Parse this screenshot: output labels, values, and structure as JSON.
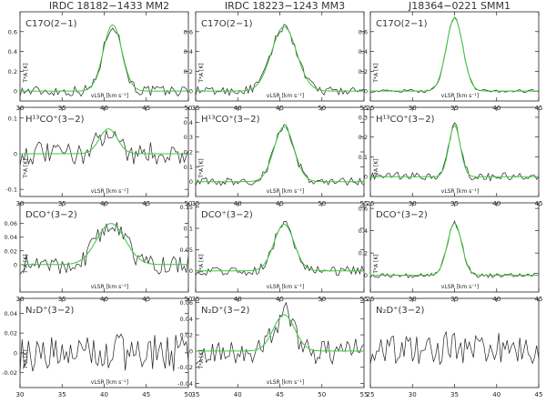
{
  "column_titles": [
    "IRDC 18182−1433 MM2",
    "IRDC 18223−1243 MM3",
    "J18364−0221 SMM1"
  ],
  "chart_data": [
    {
      "type": "line",
      "panel": "C17O(2-1)",
      "source": "IRDC 18182-1433 MM2",
      "line_label": "C17O(2−1)",
      "xlim": [
        30,
        50
      ],
      "ylim": [
        -0.1,
        0.8
      ],
      "xticks": [
        30,
        35,
        40,
        45,
        50
      ],
      "yticks": [
        0,
        0.2,
        0.4,
        0.6
      ],
      "ylabel": "T*A [K]",
      "xlabel": "vLSR [km s⁻¹]",
      "fit": {
        "amp": 0.67,
        "center": 41.0,
        "fwhm": 2.6
      },
      "noise": 0.05,
      "series": [
        {
          "values": []
        },
        {
          "values": []
        }
      ]
    },
    {
      "type": "line",
      "panel": "C17O(2-1)",
      "source": "IRDC 18223-1243 MM3",
      "line_label": "C17O(2−1)",
      "xlim": [
        35,
        55
      ],
      "ylim": [
        -0.1,
        0.8
      ],
      "xticks": [
        35,
        40,
        45,
        50,
        55
      ],
      "yticks": [
        0,
        0.2,
        0.4,
        0.6
      ],
      "ylabel": "T*A [K]",
      "xlabel": "vLSR [km s⁻¹]",
      "fit": {
        "amp": 0.65,
        "center": 45.5,
        "fwhm": 3.5
      },
      "noise": 0.04,
      "series": [
        {
          "values": []
        },
        {
          "values": []
        }
      ]
    },
    {
      "type": "line",
      "panel": "C17O(2-1)",
      "source": "J18364-0221 SMM1",
      "line_label": "C17O(2−1)",
      "xlim": [
        25,
        45
      ],
      "ylim": [
        -0.1,
        0.8
      ],
      "xticks": [
        25,
        30,
        35,
        40,
        45
      ],
      "yticks": [
        0,
        0.2,
        0.4,
        0.6
      ],
      "ylabel": "T*A [K]",
      "xlabel": "vLSR [km s⁻¹]",
      "fit": {
        "amp": 0.74,
        "center": 35.0,
        "fwhm": 2.3
      },
      "noise": 0.015,
      "series": [
        {
          "values": []
        },
        {
          "values": []
        }
      ]
    },
    {
      "type": "line",
      "panel": "H13CO+(3-2)",
      "source": "IRDC 18182-1433 MM2",
      "line_label": "H¹³CO⁺(3−2)",
      "xlim": [
        30,
        50
      ],
      "ylim": [
        -0.12,
        0.13
      ],
      "xticks": [
        30,
        35,
        40,
        45,
        50
      ],
      "yticks": [
        -0.1,
        0,
        0.1
      ],
      "ylabel": "T*A [K]",
      "xlabel": "vLSR [km s⁻¹]",
      "fit": {
        "amp": 0.07,
        "center": 40.5,
        "fwhm": 2.5
      },
      "noise": 0.03,
      "series": [
        {
          "values": []
        },
        {
          "values": []
        }
      ]
    },
    {
      "type": "line",
      "panel": "H13CO+(3-2)",
      "source": "IRDC 18223-1243 MM3",
      "line_label": "H¹³CO⁺(3−2)",
      "xlim": [
        35,
        55
      ],
      "ylim": [
        -0.1,
        0.5
      ],
      "xticks": [
        35,
        40,
        45,
        50,
        55
      ],
      "yticks": [
        0,
        0.1,
        0.2,
        0.3,
        0.4
      ],
      "ylabel": "T*A [K]",
      "xlabel": "vLSR [km s⁻¹]",
      "fit": {
        "amp": 0.37,
        "center": 45.5,
        "fwhm": 2.8
      },
      "noise": 0.025,
      "series": [
        {
          "values": []
        },
        {
          "values": []
        }
      ]
    },
    {
      "type": "line",
      "panel": "H13CO+(3-2)",
      "source": "J18364-0221 SMM1",
      "line_label": "H¹³CO⁺(3−2)",
      "xlim": [
        25,
        45
      ],
      "ylim": [
        -0.1,
        0.35
      ],
      "xticks": [
        25,
        30,
        35,
        40,
        45
      ],
      "yticks": [
        0,
        0.1,
        0.2,
        0.3
      ],
      "ylabel": "T*A [K]",
      "xlabel": "vLSR [km s⁻¹]",
      "fit": {
        "amp": 0.26,
        "center": 35.0,
        "fwhm": 1.6
      },
      "noise": 0.02,
      "series": [
        {
          "values": []
        },
        {
          "values": []
        }
      ]
    },
    {
      "type": "line",
      "panel": "DCO+(3-2)",
      "source": "IRDC 18182-1433 MM2",
      "line_label": "DCO⁺(3−2)",
      "xlim": [
        30,
        50
      ],
      "ylim": [
        -0.04,
        0.09
      ],
      "xticks": [
        30,
        35,
        40,
        45,
        50
      ],
      "yticks": [
        0,
        0.02,
        0.04,
        0.06
      ],
      "ylabel": "T*A [K]",
      "xlabel": "vLSR [km s⁻¹]",
      "fit": {
        "amp": 0.06,
        "center": 40.8,
        "fwhm": 4.0
      },
      "noise": 0.013,
      "series": [
        {
          "values": []
        },
        {
          "values": []
        }
      ]
    },
    {
      "type": "line",
      "panel": "DCO+(3-2)",
      "source": "IRDC 18223-1243 MM3",
      "line_label": "DCO⁺(3−2)",
      "xlim": [
        35,
        55
      ],
      "ylim": [
        -0.05,
        0.16
      ],
      "xticks": [
        35,
        40,
        45,
        50,
        55
      ],
      "yticks": [
        0,
        0.05,
        0.1,
        0.15
      ],
      "ylabel": "T*A [K]",
      "xlabel": "vLSR [km s⁻¹]",
      "fit": {
        "amp": 0.11,
        "center": 45.5,
        "fwhm": 2.8
      },
      "noise": 0.01,
      "series": [
        {
          "values": []
        },
        {
          "values": []
        }
      ]
    },
    {
      "type": "line",
      "panel": "DCO+(3-2)",
      "source": "J18364-0221 SMM1",
      "line_label": "DCO⁺(3−2)",
      "xlim": [
        25,
        45
      ],
      "ylim": [
        -0.15,
        0.65
      ],
      "xticks": [
        25,
        30,
        35,
        40,
        45
      ],
      "yticks": [
        0,
        0.2,
        0.4,
        0.6
      ],
      "ylabel": "T*A [K]",
      "xlabel": "vLSR [km s⁻¹]",
      "fit": {
        "amp": 0.47,
        "center": 35.0,
        "fwhm": 2.0
      },
      "noise": 0.02,
      "series": [
        {
          "values": []
        },
        {
          "values": []
        }
      ]
    },
    {
      "type": "line",
      "panel": "N2D+(3-2)",
      "source": "IRDC 18182-1433 MM2",
      "line_label": "N₂D⁺(3−2)",
      "xlim": [
        30,
        50
      ],
      "ylim": [
        -0.035,
        0.055
      ],
      "xticks": [
        30,
        35,
        40,
        45,
        50
      ],
      "yticks": [
        -0.02,
        0,
        0.02,
        0.04
      ],
      "ylabel": "T*A [K]",
      "xlabel": "vLSR [km s⁻¹]",
      "fit": null,
      "noise": 0.018,
      "series": [
        {
          "values": []
        }
      ]
    },
    {
      "type": "line",
      "panel": "N2D+(3-2)",
      "source": "IRDC 18223-1243 MM3",
      "line_label": "N₂D⁺(3−2)",
      "xlim": [
        35,
        55
      ],
      "ylim": [
        -0.045,
        0.065
      ],
      "xticks": [
        35,
        40,
        45,
        50,
        55
      ],
      "yticks": [
        -0.04,
        -0.02,
        0,
        0.02,
        0.04,
        0.06
      ],
      "ylabel": "T*A [K]",
      "xlabel": "vLSR [km s⁻¹]",
      "fit": {
        "amp": 0.045,
        "center": 45.5,
        "fwhm": 3.0
      },
      "noise": 0.015,
      "series": [
        {
          "values": []
        },
        {
          "values": []
        }
      ]
    },
    {
      "type": "line",
      "panel": "N2D+(3-2)",
      "source": "J18364-0221 SMM1",
      "line_label": "N₂D⁺(3−2)",
      "xlim": [
        25,
        45
      ],
      "ylim": [
        -0.08,
        0.1
      ],
      "xticks": [
        25,
        30,
        35,
        40,
        45
      ],
      "yticks": [],
      "ylabel": "",
      "xlabel": "",
      "fit": null,
      "noise": 0.03,
      "series": [
        {
          "values": []
        }
      ]
    }
  ]
}
